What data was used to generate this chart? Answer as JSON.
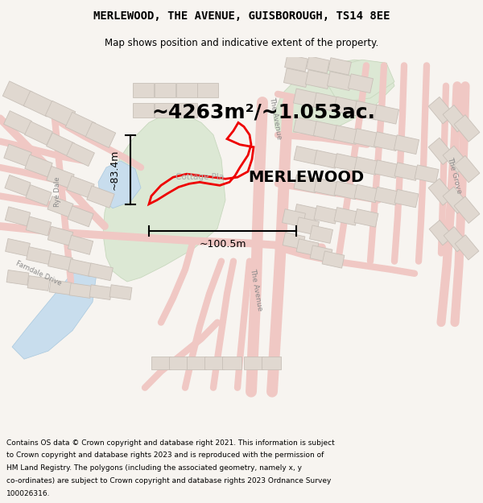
{
  "title_line1": "MERLEWOOD, THE AVENUE, GUISBOROUGH, TS14 8EE",
  "title_line2": "Map shows position and indicative extent of the property.",
  "property_label": "MERLEWOOD",
  "cottage_label": "Cottage Pla",
  "area_text": "~4263m²/~1.053ac.",
  "width_text": "~100.5m",
  "height_text": "~83.4m",
  "footer_text": "Contains OS data © Crown copyright and database right 2021. This information is subject to Crown copyright and database rights 2023 and is reproduced with the permission of HM Land Registry. The polygons (including the associated geometry, namely x, y co-ordinates) are subject to Crown copyright and database rights 2023 Ordnance Survey 100026316.",
  "map_bg": "#f7f4f0",
  "green_color": "#dce8d4",
  "water_color": "#c8dded",
  "road_fill": "#f0c8c4",
  "building_fill": "#e0d8d0",
  "building_edge": "#c8c0b8",
  "red_poly_edge": "#ee0000",
  "header_bg": "#f7f4f0",
  "footer_bg": "#f7f4f0",
  "road_label_color": "#888888",
  "dim_label_color": "#222222",
  "area_label_color": "#111111"
}
